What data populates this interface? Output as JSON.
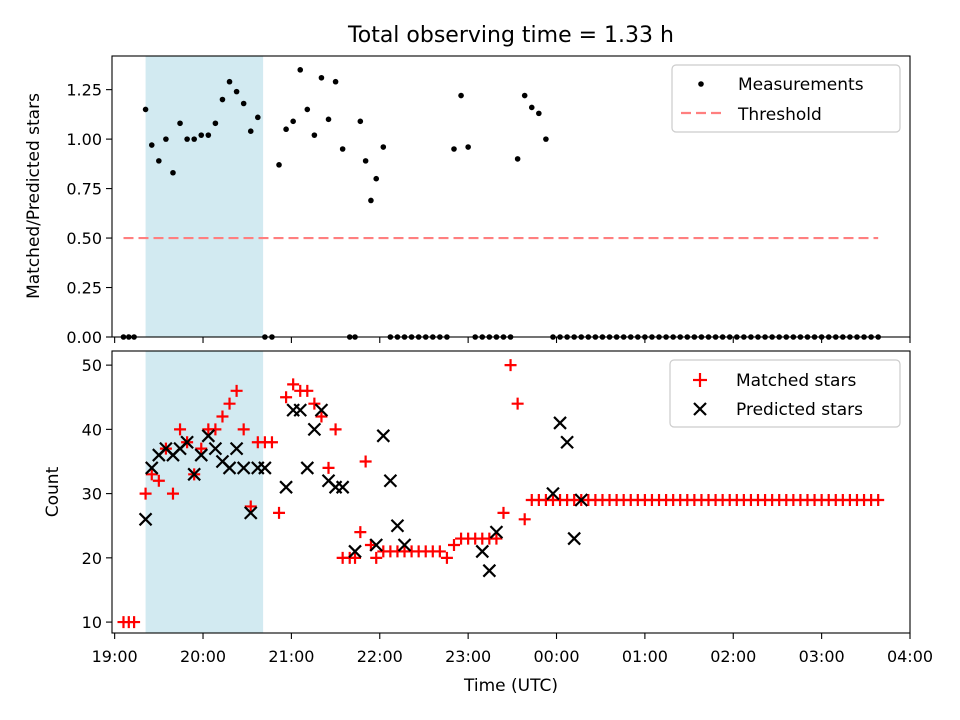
{
  "title": "Total observing time = 1.33 h",
  "colors": {
    "shade": "#add8e6",
    "measurements": "#000000",
    "threshold": "#ff7f7f",
    "matched": "#ff0000",
    "predicted": "#000000"
  },
  "chart_data": [
    {
      "type": "scatter",
      "ylabel": "Matched/Predicted stars",
      "xlim": [
        18.97,
        28.0
      ],
      "ylim": [
        0.0,
        1.42
      ],
      "x_tick_hours": [
        19,
        20,
        21,
        22,
        23,
        24,
        25,
        26,
        27,
        28
      ],
      "yticks": [
        0.0,
        0.25,
        0.5,
        0.75,
        1.0,
        1.25
      ],
      "ytick_labels": [
        "0.00",
        "0.25",
        "0.50",
        "0.75",
        "1.00",
        "1.25"
      ],
      "shaded_interval": [
        19.35,
        20.68
      ],
      "legend": {
        "position": "top-right",
        "entries": [
          "Measurements",
          "Threshold"
        ]
      },
      "series": [
        {
          "name": "Measurements",
          "x": [
            19.1,
            19.16,
            19.22,
            19.35,
            19.42,
            19.5,
            19.58,
            19.66,
            19.74,
            19.82,
            19.9,
            19.98,
            20.06,
            20.14,
            20.22,
            20.3,
            20.38,
            20.46,
            20.54,
            20.62,
            20.7,
            20.78,
            20.86,
            20.94,
            21.02,
            21.1,
            21.18,
            21.26,
            21.34,
            21.42,
            21.5,
            21.58,
            21.66,
            21.72,
            21.78,
            21.84,
            21.9,
            21.96,
            22.04,
            22.12,
            22.2,
            22.28,
            22.36,
            22.44,
            22.52,
            22.6,
            22.68,
            22.76,
            22.84,
            22.92,
            23.0,
            23.08,
            23.16,
            23.24,
            23.32,
            23.4,
            23.48,
            23.56,
            23.64,
            23.72,
            23.8,
            23.88,
            23.96,
            24.04,
            24.12,
            24.2,
            24.28,
            24.36,
            24.44,
            24.52,
            24.6,
            24.68,
            24.76,
            24.84,
            24.92,
            25.0,
            25.08,
            25.16,
            25.24,
            25.32,
            25.4,
            25.48,
            25.56,
            25.64,
            25.72,
            25.8,
            25.88,
            25.96,
            26.04,
            26.12,
            26.2,
            26.28,
            26.36,
            26.44,
            26.52,
            26.6,
            26.68,
            26.76,
            26.84,
            26.92,
            27.0,
            27.08,
            27.16,
            27.24,
            27.32,
            27.4,
            27.48,
            27.56,
            27.64
          ],
          "y": [
            0.0,
            0.0,
            0.0,
            1.15,
            0.97,
            0.89,
            1.0,
            0.83,
            1.08,
            1.0,
            1.0,
            1.02,
            1.02,
            1.08,
            1.2,
            1.29,
            1.24,
            1.18,
            1.04,
            1.11,
            0.0,
            0.0,
            0.87,
            1.05,
            1.09,
            1.35,
            1.15,
            1.02,
            1.31,
            1.1,
            1.29,
            0.95,
            0.0,
            0.0,
            1.09,
            0.89,
            0.69,
            0.8,
            0.96,
            0.0,
            0.0,
            0.0,
            0.0,
            0.0,
            0.0,
            0.0,
            0.0,
            0.0,
            0.95,
            1.22,
            0.96,
            0.0,
            0.0,
            0.0,
            0.0,
            0.0,
            0.0,
            0.9,
            1.22,
            1.16,
            1.13,
            1.0,
            0.0,
            0.0,
            0.0,
            0.0,
            0.0,
            0.0,
            0.0,
            0.0,
            0.0,
            0.0,
            0.0,
            0.0,
            0.0,
            0.0,
            0.0,
            0.0,
            0.0,
            0.0,
            0.0,
            0.0,
            0.0,
            0.0,
            0.0,
            0.0,
            0.0,
            0.0,
            0.0,
            0.0,
            0.0,
            0.0,
            0.0,
            0.0,
            0.0,
            0.0,
            0.0,
            0.0,
            0.0,
            0.0,
            0.0,
            0.0,
            0.0,
            0.0,
            0.0,
            0.0,
            0.0,
            0.0,
            0.0
          ]
        },
        {
          "name": "Threshold",
          "x": [
            19.1,
            27.64
          ],
          "y": [
            0.5,
            0.5
          ]
        }
      ]
    },
    {
      "type": "scatter",
      "ylabel": "Count",
      "xlabel": "Time (UTC)",
      "xlim": [
        18.97,
        28.0
      ],
      "ylim": [
        8.3,
        52.2
      ],
      "x_tick_hours": [
        19,
        20,
        21,
        22,
        23,
        24,
        25,
        26,
        27,
        28
      ],
      "x_tick_labels": [
        "19:00",
        "20:00",
        "21:00",
        "22:00",
        "23:00",
        "00:00",
        "01:00",
        "02:00",
        "03:00",
        "04:00"
      ],
      "yticks": [
        10,
        20,
        30,
        40,
        50
      ],
      "ytick_labels": [
        "10",
        "20",
        "30",
        "40",
        "50"
      ],
      "shaded_interval": [
        19.35,
        20.68
      ],
      "legend": {
        "position": "top-right",
        "entries": [
          "Matched stars",
          "Predicted stars"
        ]
      },
      "series": [
        {
          "name": "Matched stars",
          "x": [
            19.1,
            19.16,
            19.22,
            19.35,
            19.42,
            19.5,
            19.58,
            19.66,
            19.74,
            19.82,
            19.9,
            19.98,
            20.06,
            20.14,
            20.22,
            20.3,
            20.38,
            20.46,
            20.54,
            20.62,
            20.7,
            20.78,
            20.86,
            20.94,
            21.02,
            21.1,
            21.18,
            21.26,
            21.34,
            21.42,
            21.5,
            21.58,
            21.66,
            21.72,
            21.78,
            21.84,
            21.9,
            21.96,
            22.04,
            22.12,
            22.2,
            22.28,
            22.36,
            22.44,
            22.52,
            22.6,
            22.68,
            22.76,
            22.84,
            22.92,
            23.0,
            23.08,
            23.16,
            23.24,
            23.32,
            23.4,
            23.48,
            23.56,
            23.64,
            23.72,
            23.8,
            23.88,
            23.96,
            24.04,
            24.12,
            24.2,
            24.28,
            24.36,
            24.44,
            24.52,
            24.6,
            24.68,
            24.76,
            24.84,
            24.92,
            25.0,
            25.08,
            25.16,
            25.24,
            25.32,
            25.4,
            25.48,
            25.56,
            25.64,
            25.72,
            25.8,
            25.88,
            25.96,
            26.04,
            26.12,
            26.2,
            26.28,
            26.36,
            26.44,
            26.52,
            26.6,
            26.68,
            26.76,
            26.84,
            26.92,
            27.0,
            27.08,
            27.16,
            27.24,
            27.32,
            27.4,
            27.48,
            27.56,
            27.64
          ],
          "y": [
            10,
            10,
            10,
            30,
            33,
            32,
            37,
            30,
            40,
            38,
            33,
            37,
            40,
            40,
            42,
            44,
            46,
            40,
            28,
            38,
            38,
            38,
            27,
            45,
            47,
            46,
            46,
            44,
            42,
            34,
            40,
            20,
            20,
            20,
            24,
            35,
            22,
            20,
            21,
            21,
            21,
            21,
            21,
            21,
            21,
            21,
            21,
            20,
            22,
            23,
            23,
            23,
            23,
            23,
            23,
            27,
            50,
            44,
            26,
            29,
            29,
            29,
            29,
            29,
            29,
            29,
            29,
            29,
            29,
            29,
            29,
            29,
            29,
            29,
            29,
            29,
            29,
            29,
            29,
            29,
            29,
            29,
            29,
            29,
            29,
            29,
            29,
            29,
            29,
            29,
            29,
            29,
            29,
            29,
            29,
            29,
            29,
            29,
            29,
            29,
            29,
            29,
            29,
            29,
            29,
            29,
            29,
            29,
            29
          ]
        },
        {
          "name": "Predicted stars",
          "x": [
            19.35,
            19.42,
            19.5,
            19.58,
            19.66,
            19.74,
            19.82,
            19.9,
            19.98,
            20.06,
            20.14,
            20.22,
            20.3,
            20.38,
            20.46,
            20.54,
            20.62,
            20.7,
            20.94,
            21.02,
            21.1,
            21.18,
            21.26,
            21.34,
            21.42,
            21.5,
            21.58,
            21.72,
            21.96,
            22.04,
            22.12,
            22.2,
            22.28,
            23.16,
            23.24,
            23.32,
            23.96,
            24.04,
            24.12,
            24.2,
            24.28
          ],
          "y": [
            26,
            34,
            36,
            37,
            36,
            37,
            38,
            33,
            36,
            39,
            37,
            35,
            34,
            37,
            34,
            27,
            34,
            34,
            31,
            43,
            43,
            34,
            40,
            43,
            32,
            31,
            31,
            21,
            22,
            39,
            32,
            25,
            22,
            21,
            18,
            24,
            30,
            41,
            38,
            23,
            29
          ]
        }
      ]
    }
  ]
}
